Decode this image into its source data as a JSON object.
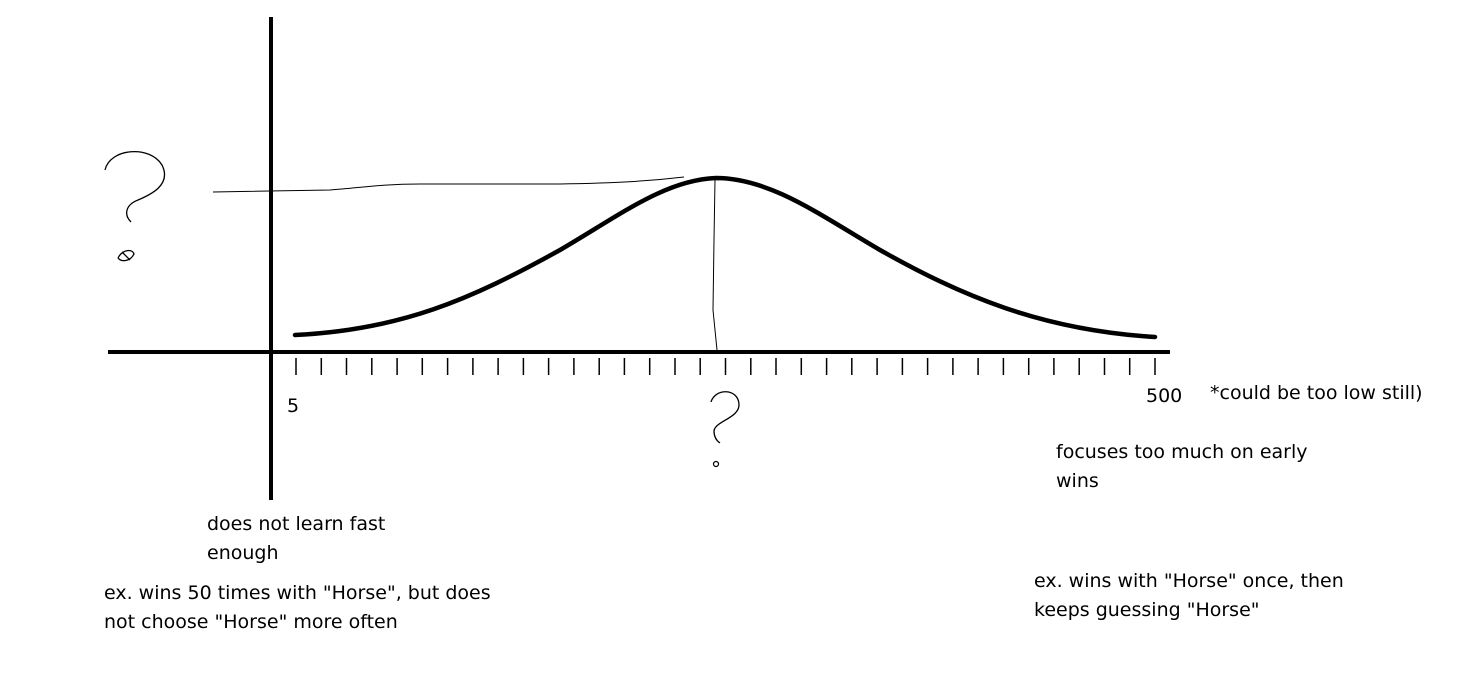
{
  "diagram": {
    "x_axis": {
      "start_label": "5",
      "end_label": "500",
      "end_note": "*could be too low still)",
      "peak_marker": "?"
    },
    "y_axis": {
      "peak_marker": "?"
    },
    "annotations": {
      "left_effect": [
        "does not learn fast",
        "enough"
      ],
      "left_example": [
        "ex. wins 50 times with \"Horse\", but does",
        "not choose \"Horse\" more often"
      ],
      "right_effect": [
        "focuses too much on early",
        "wins"
      ],
      "right_example": [
        "ex. wins with \"Horse\" once, then",
        "keeps guessing \"Horse\""
      ]
    },
    "tick_count": 35,
    "colors": {
      "ink": "#000000",
      "background": "#ffffff"
    }
  }
}
